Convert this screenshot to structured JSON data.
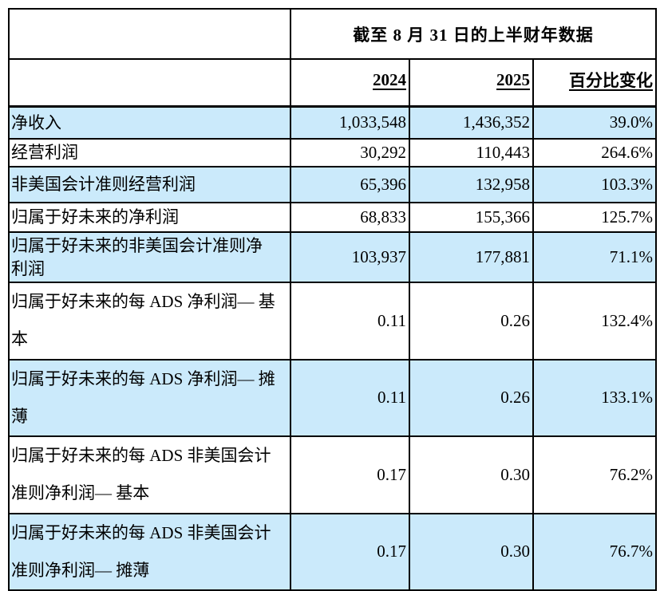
{
  "table": {
    "title": "截至 8 月 31 日的上半财年数据",
    "columns": {
      "col_2024": "2024",
      "col_2025": "2025",
      "col_change": "百分比变化"
    },
    "rows": [
      {
        "label": "净收入",
        "y2024": "1,033,548",
        "y2025": "1,436,352",
        "change": "39.0%"
      },
      {
        "label": "经营利润",
        "y2024": "30,292",
        "y2025": "110,443",
        "change": "264.6%"
      },
      {
        "label": "非美国会计准则经营利润",
        "y2024": "65,396",
        "y2025": "132,958",
        "change": "103.3%"
      },
      {
        "label": "归属于好未来的净利润",
        "y2024": "68,833",
        "y2025": "155,366",
        "change": "125.7%"
      },
      {
        "label": "归属于好未来的非美国会计准则净\n利润",
        "y2024": "103,937",
        "y2025": "177,881",
        "change": "71.1%"
      },
      {
        "label": "归属于好未来的每 ADS 净利润— 基\n本",
        "y2024": "0.11",
        "y2025": "0.26",
        "change": "132.4%"
      },
      {
        "label": "归属于好未来的每 ADS 净利润— 摊\n薄",
        "y2024": "0.11",
        "y2025": "0.26",
        "change": "133.1%"
      },
      {
        "label": "归属于好未来的每 ADS 非美国会计\n准则净利润— 基本",
        "y2024": "0.17",
        "y2025": "0.30",
        "change": "76.2%"
      },
      {
        "label": "归属于好未来的每 ADS 非美国会计\n准则净利润— 摊薄",
        "y2024": "0.17",
        "y2025": "0.30",
        "change": "76.7%"
      }
    ]
  },
  "colors": {
    "row_highlight": "#cbeafb",
    "border": "#000000",
    "background": "#ffffff"
  }
}
